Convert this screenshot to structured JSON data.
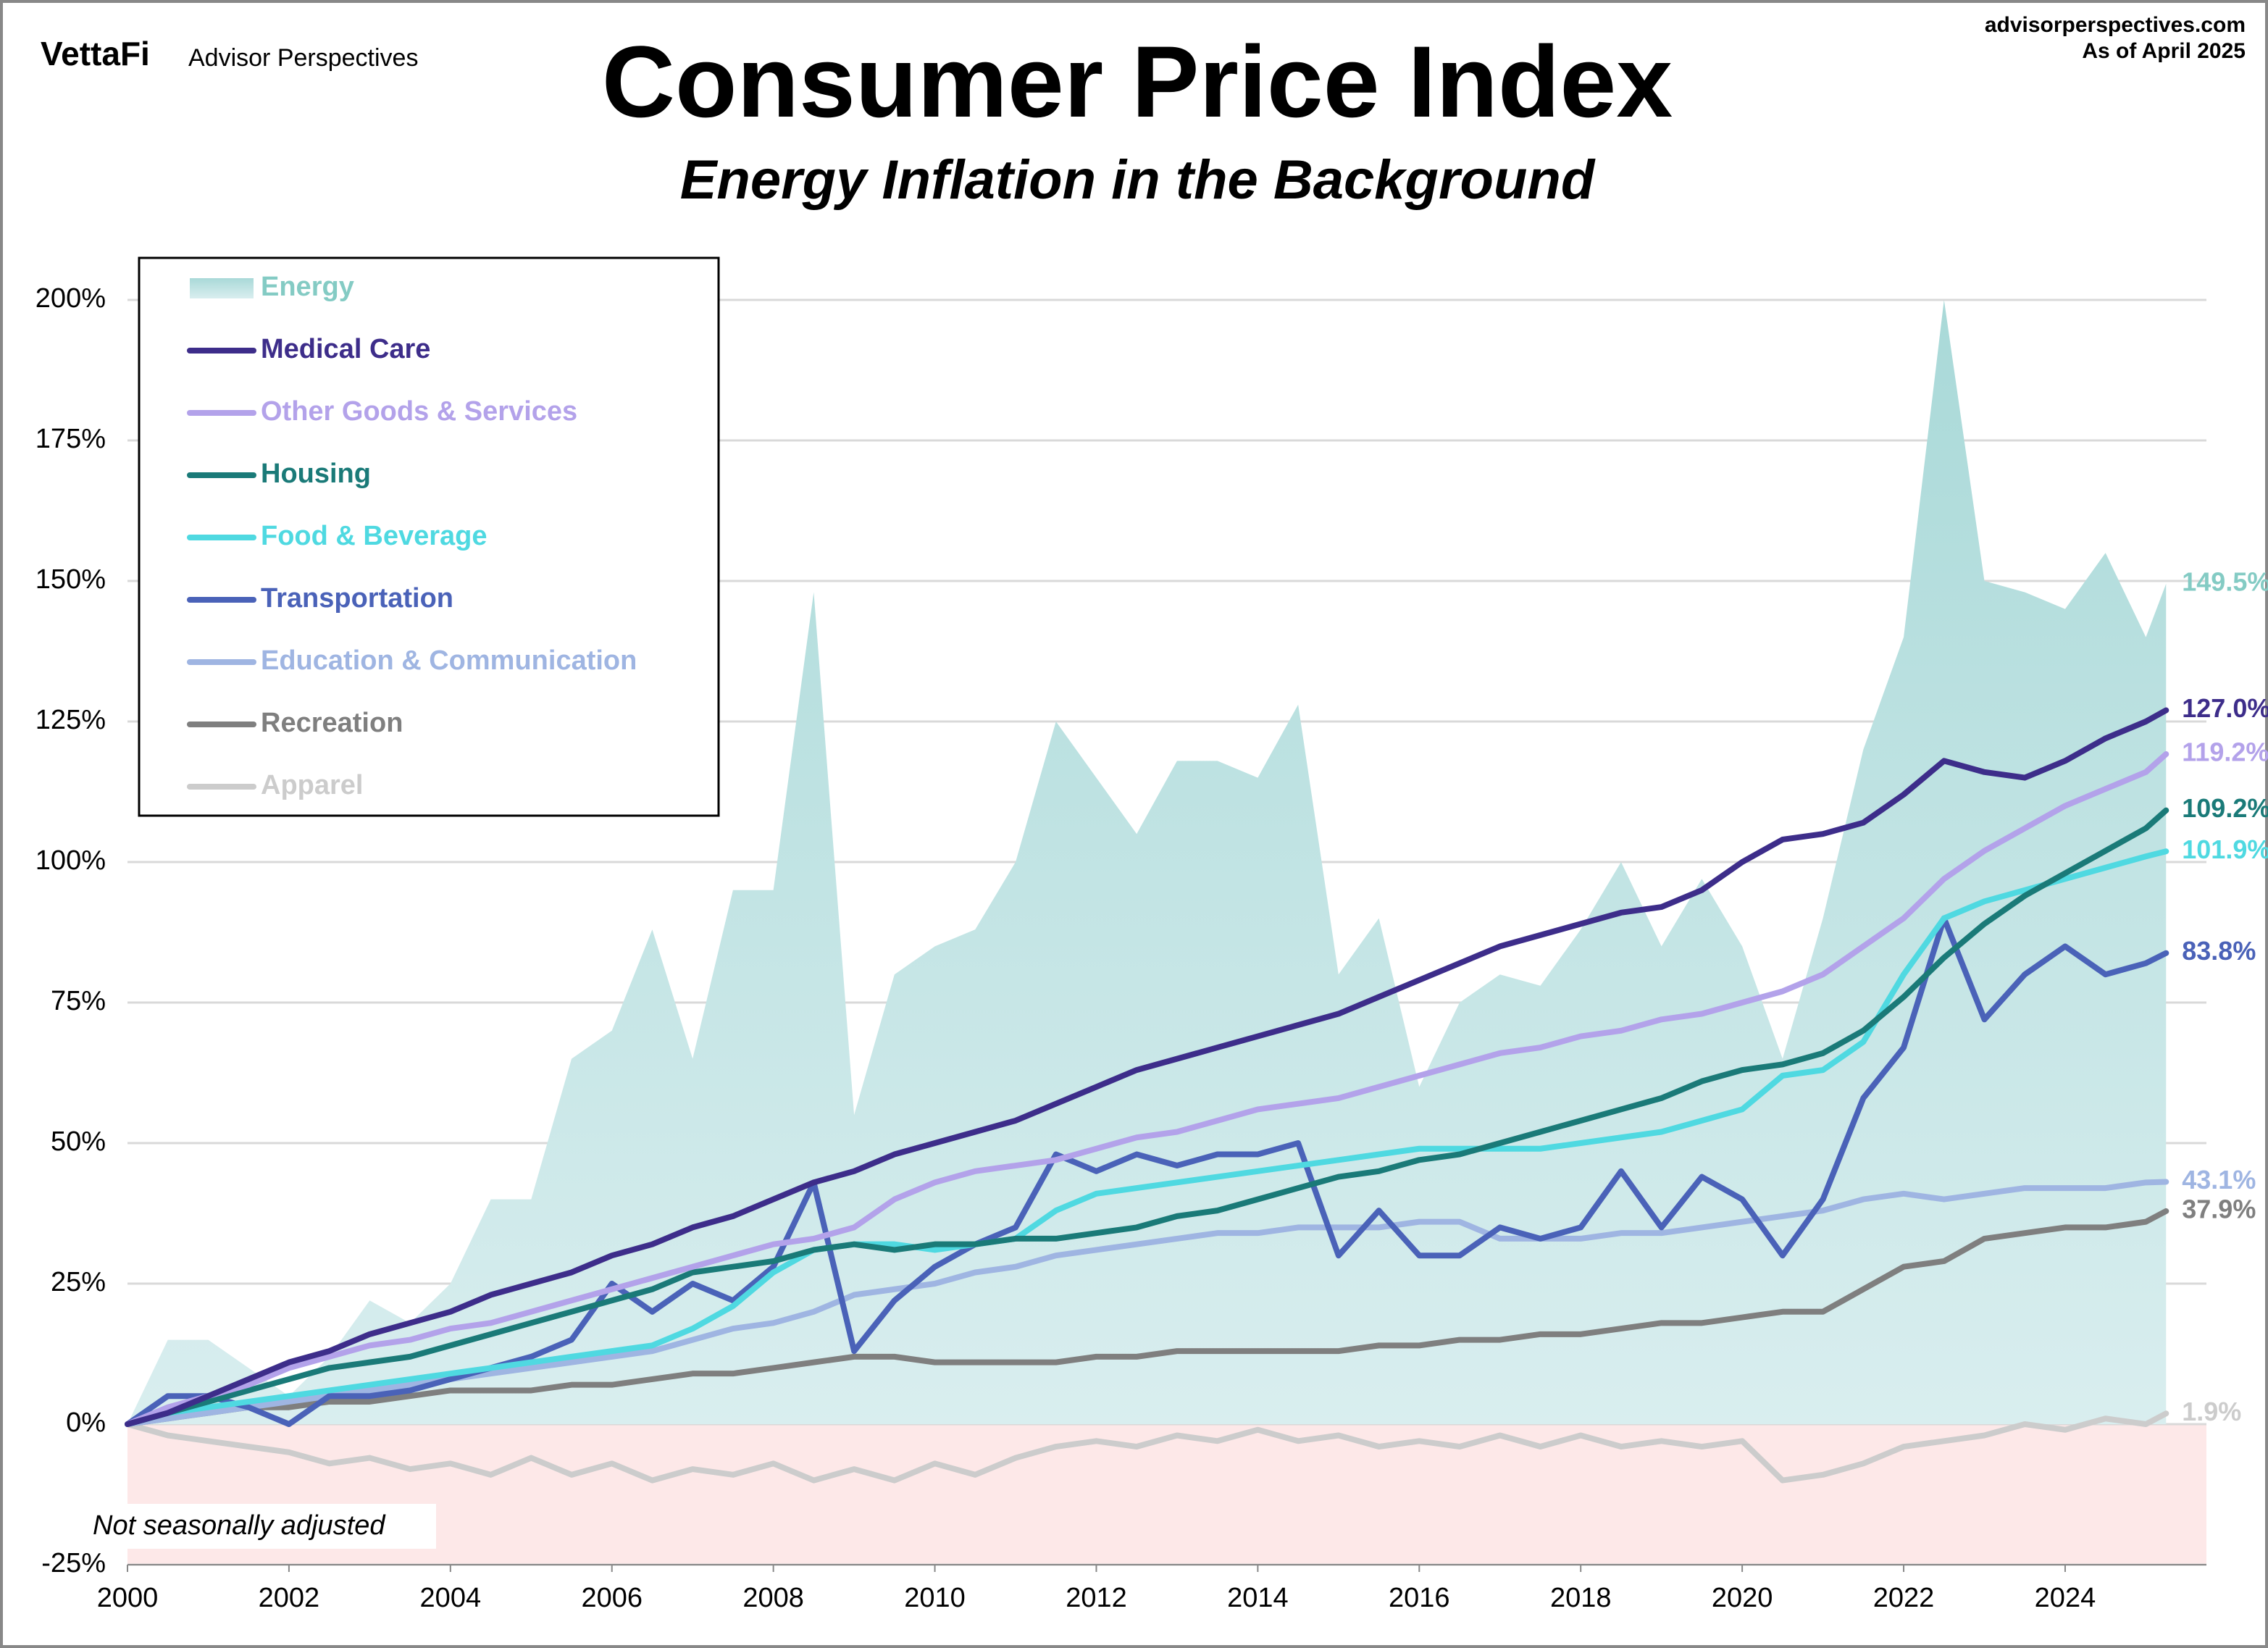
{
  "header": {
    "logo": "VettaFi",
    "brand": "Advisor Perspectives",
    "source": "advisorperspectives.com",
    "as_of": "As of April 2025"
  },
  "chart_data": {
    "type": "line",
    "title": "Consumer Price Index",
    "subtitle": "Energy Inflation in the Background",
    "note": "Not seasonally adjusted",
    "negative_shade_color": "#fde8e8",
    "grid": true,
    "legend": "upper left",
    "xlim": [
      2000,
      2025.75
    ],
    "xticks": [
      2000,
      2002,
      2004,
      2006,
      2008,
      2010,
      2012,
      2014,
      2016,
      2018,
      2020,
      2022,
      2024
    ],
    "ylim": [
      -25,
      200
    ],
    "yticks": [
      {
        "value": -25,
        "label": "-25%"
      },
      {
        "value": 0,
        "label": "0%"
      },
      {
        "value": 25,
        "label": "25%"
      },
      {
        "value": 50,
        "label": "50%"
      },
      {
        "value": 75,
        "label": "75%"
      },
      {
        "value": 100,
        "label": "100%"
      },
      {
        "value": 125,
        "label": "125%"
      },
      {
        "value": 150,
        "label": "150%"
      },
      {
        "value": 175,
        "label": "175%"
      },
      {
        "value": 200,
        "label": "200%"
      }
    ],
    "x": [
      2000,
      2000.5,
      2001,
      2001.5,
      2002,
      2002.5,
      2003,
      2003.5,
      2004,
      2004.5,
      2005,
      2005.5,
      2006,
      2006.5,
      2007,
      2007.5,
      2008,
      2008.5,
      2009,
      2009.5,
      2010,
      2010.5,
      2011,
      2011.5,
      2012,
      2012.5,
      2013,
      2013.5,
      2014,
      2014.5,
      2015,
      2015.5,
      2016,
      2016.5,
      2017,
      2017.5,
      2018,
      2018.5,
      2019,
      2019.5,
      2020,
      2020.5,
      2021,
      2021.5,
      2022,
      2022.5,
      2023,
      2023.5,
      2024,
      2024.5,
      2025,
      2025.25
    ],
    "series": [
      {
        "name": "Energy",
        "kind": "area",
        "color": "#a9d9d8",
        "label_color": "#84cbc4",
        "values": [
          0,
          15,
          15,
          10,
          5,
          12,
          22,
          18,
          25,
          40,
          40,
          65,
          70,
          88,
          65,
          95,
          95,
          148,
          55,
          80,
          85,
          88,
          100,
          125,
          115,
          105,
          118,
          118,
          115,
          128,
          80,
          90,
          60,
          75,
          80,
          78,
          88,
          100,
          85,
          97,
          85,
          65,
          90,
          120,
          140,
          200,
          150,
          148,
          145,
          155,
          140,
          149.5
        ],
        "value_labels": [
          null,
          null,
          null,
          null,
          null,
          null,
          null,
          null,
          null,
          null,
          null,
          null,
          null,
          null,
          null,
          null,
          null,
          null,
          null,
          null,
          null,
          null,
          null,
          null,
          null,
          null,
          null,
          null,
          null,
          null,
          null,
          null,
          null,
          null,
          null,
          null,
          null,
          null,
          null,
          null,
          null,
          null,
          null,
          null,
          null,
          null,
          null,
          null,
          null,
          null,
          null,
          "149.5%"
        ]
      },
      {
        "name": "Medical Care",
        "color": "#3d2d8a",
        "values": [
          0,
          2,
          5,
          8,
          11,
          13,
          16,
          18,
          20,
          23,
          25,
          27,
          30,
          32,
          35,
          37,
          40,
          43,
          45,
          48,
          50,
          52,
          54,
          57,
          60,
          63,
          65,
          67,
          69,
          71,
          73,
          76,
          79,
          82,
          85,
          87,
          89,
          91,
          92,
          95,
          100,
          104,
          105,
          107,
          112,
          118,
          116,
          115,
          118,
          122,
          125,
          127
        ],
        "value_labels": [
          null,
          null,
          null,
          null,
          null,
          null,
          null,
          null,
          null,
          null,
          null,
          null,
          null,
          null,
          null,
          null,
          null,
          null,
          null,
          null,
          null,
          null,
          null,
          null,
          null,
          null,
          null,
          null,
          null,
          null,
          null,
          null,
          null,
          null,
          null,
          null,
          null,
          null,
          null,
          null,
          null,
          null,
          null,
          null,
          null,
          null,
          null,
          null,
          null,
          null,
          null,
          "127.0%"
        ]
      },
      {
        "name": "Other Goods & Services",
        "color": "#b3a2ea",
        "values": [
          0,
          3,
          5,
          7,
          10,
          12,
          14,
          15,
          17,
          18,
          20,
          22,
          24,
          26,
          28,
          30,
          32,
          33,
          35,
          40,
          43,
          45,
          46,
          47,
          49,
          51,
          52,
          54,
          56,
          57,
          58,
          60,
          62,
          64,
          66,
          67,
          69,
          70,
          72,
          73,
          75,
          77,
          80,
          85,
          90,
          97,
          102,
          106,
          110,
          113,
          116,
          119.2
        ],
        "value_labels": [
          null,
          null,
          null,
          null,
          null,
          null,
          null,
          null,
          null,
          null,
          null,
          null,
          null,
          null,
          null,
          null,
          null,
          null,
          null,
          null,
          null,
          null,
          null,
          null,
          null,
          null,
          null,
          null,
          null,
          null,
          null,
          null,
          null,
          null,
          null,
          null,
          null,
          null,
          null,
          null,
          null,
          null,
          null,
          null,
          null,
          null,
          null,
          null,
          null,
          null,
          null,
          "119.2%"
        ]
      },
      {
        "name": "Housing",
        "color": "#1a7a78",
        "values": [
          0,
          2,
          4,
          6,
          8,
          10,
          11,
          12,
          14,
          16,
          18,
          20,
          22,
          24,
          27,
          28,
          29,
          31,
          32,
          31,
          32,
          32,
          33,
          33,
          34,
          35,
          37,
          38,
          40,
          42,
          44,
          45,
          47,
          48,
          50,
          52,
          54,
          56,
          58,
          61,
          63,
          64,
          66,
          70,
          76,
          83,
          89,
          94,
          98,
          102,
          106,
          109.2
        ],
        "value_labels": [
          null,
          null,
          null,
          null,
          null,
          null,
          null,
          null,
          null,
          null,
          null,
          null,
          null,
          null,
          null,
          null,
          null,
          null,
          null,
          null,
          null,
          null,
          null,
          null,
          null,
          null,
          null,
          null,
          null,
          null,
          null,
          null,
          null,
          null,
          null,
          null,
          null,
          null,
          null,
          null,
          null,
          null,
          null,
          null,
          null,
          null,
          null,
          null,
          null,
          null,
          null,
          "109.2%"
        ]
      },
      {
        "name": "Food & Beverage",
        "color": "#4fd9e1",
        "values": [
          0,
          2,
          3,
          4,
          5,
          6,
          7,
          8,
          9,
          10,
          11,
          12,
          13,
          14,
          17,
          21,
          27,
          31,
          32,
          32,
          31,
          32,
          33,
          38,
          41,
          42,
          43,
          44,
          45,
          46,
          47,
          48,
          49,
          49,
          49,
          49,
          50,
          51,
          52,
          54,
          56,
          62,
          63,
          68,
          80,
          90,
          93,
          95,
          97,
          99,
          101,
          101.9
        ],
        "value_labels": [
          null,
          null,
          null,
          null,
          null,
          null,
          null,
          null,
          null,
          null,
          null,
          null,
          null,
          null,
          null,
          null,
          null,
          null,
          null,
          null,
          null,
          null,
          null,
          null,
          null,
          null,
          null,
          null,
          null,
          null,
          null,
          null,
          null,
          null,
          null,
          null,
          null,
          null,
          null,
          null,
          null,
          null,
          null,
          null,
          null,
          null,
          null,
          null,
          null,
          null,
          null,
          "101.9%"
        ]
      },
      {
        "name": "Transportation",
        "color": "#4a62b8",
        "values": [
          0,
          5,
          5,
          3,
          0,
          5,
          5,
          6,
          8,
          10,
          12,
          15,
          25,
          20,
          25,
          22,
          28,
          43,
          13,
          22,
          28,
          32,
          35,
          48,
          45,
          48,
          46,
          48,
          48,
          50,
          30,
          38,
          30,
          30,
          35,
          33,
          35,
          45,
          35,
          44,
          40,
          30,
          40,
          58,
          67,
          90,
          72,
          80,
          85,
          80,
          82,
          83.8
        ],
        "value_labels": [
          null,
          null,
          null,
          null,
          null,
          null,
          null,
          null,
          null,
          null,
          null,
          null,
          null,
          null,
          null,
          null,
          null,
          null,
          null,
          null,
          null,
          null,
          null,
          null,
          null,
          null,
          null,
          null,
          null,
          null,
          null,
          null,
          null,
          null,
          null,
          null,
          null,
          null,
          null,
          null,
          null,
          null,
          null,
          null,
          null,
          null,
          null,
          null,
          null,
          null,
          null,
          "83.8%"
        ]
      },
      {
        "name": "Education & Communication",
        "color": "#9fb5e2",
        "values": [
          0,
          1,
          2,
          3,
          4,
          5,
          6,
          7,
          8,
          9,
          10,
          11,
          12,
          13,
          15,
          17,
          18,
          20,
          23,
          24,
          25,
          27,
          28,
          30,
          31,
          32,
          33,
          34,
          34,
          35,
          35,
          35,
          36,
          36,
          33,
          33,
          33,
          34,
          34,
          35,
          36,
          37,
          38,
          40,
          41,
          40,
          41,
          42,
          42,
          42,
          43,
          43.1
        ],
        "value_labels": [
          null,
          null,
          null,
          null,
          null,
          null,
          null,
          null,
          null,
          null,
          null,
          null,
          null,
          null,
          null,
          null,
          null,
          null,
          null,
          null,
          null,
          null,
          null,
          null,
          null,
          null,
          null,
          null,
          null,
          null,
          null,
          null,
          null,
          null,
          null,
          null,
          null,
          null,
          null,
          null,
          null,
          null,
          null,
          null,
          null,
          null,
          null,
          null,
          null,
          null,
          null,
          "43.1%"
        ]
      },
      {
        "name": "Recreation",
        "color": "#7f7f7f",
        "values": [
          0,
          1,
          2,
          3,
          3,
          4,
          4,
          5,
          6,
          6,
          6,
          7,
          7,
          8,
          9,
          9,
          10,
          11,
          12,
          12,
          11,
          11,
          11,
          11,
          12,
          12,
          13,
          13,
          13,
          13,
          13,
          14,
          14,
          15,
          15,
          16,
          16,
          17,
          18,
          18,
          19,
          20,
          20,
          24,
          28,
          29,
          33,
          34,
          35,
          35,
          36,
          37.9
        ],
        "value_labels": [
          null,
          null,
          null,
          null,
          null,
          null,
          null,
          null,
          null,
          null,
          null,
          null,
          null,
          null,
          null,
          null,
          null,
          null,
          null,
          null,
          null,
          null,
          null,
          null,
          null,
          null,
          null,
          null,
          null,
          null,
          null,
          null,
          null,
          null,
          null,
          null,
          null,
          null,
          null,
          null,
          null,
          null,
          null,
          null,
          null,
          null,
          null,
          null,
          null,
          null,
          null,
          "37.9%"
        ]
      },
      {
        "name": "Apparel",
        "color": "#cccccc",
        "values": [
          0,
          -2,
          -3,
          -4,
          -5,
          -7,
          -6,
          -8,
          -7,
          -9,
          -6,
          -9,
          -7,
          -10,
          -8,
          -9,
          -7,
          -10,
          -8,
          -10,
          -7,
          -9,
          -6,
          -4,
          -3,
          -4,
          -2,
          -3,
          -1,
          -3,
          -2,
          -4,
          -3,
          -4,
          -2,
          -4,
          -2,
          -4,
          -3,
          -4,
          -3,
          -10,
          -9,
          -7,
          -4,
          -3,
          -2,
          0,
          -1,
          1,
          0,
          1.9
        ],
        "value_labels": [
          null,
          null,
          null,
          null,
          null,
          null,
          null,
          null,
          null,
          null,
          null,
          null,
          null,
          null,
          null,
          null,
          null,
          null,
          null,
          null,
          null,
          null,
          null,
          null,
          null,
          null,
          null,
          null,
          null,
          null,
          null,
          null,
          null,
          null,
          null,
          null,
          null,
          null,
          null,
          null,
          null,
          null,
          null,
          null,
          null,
          null,
          null,
          null,
          null,
          null,
          null,
          "1.9%"
        ]
      }
    ]
  }
}
